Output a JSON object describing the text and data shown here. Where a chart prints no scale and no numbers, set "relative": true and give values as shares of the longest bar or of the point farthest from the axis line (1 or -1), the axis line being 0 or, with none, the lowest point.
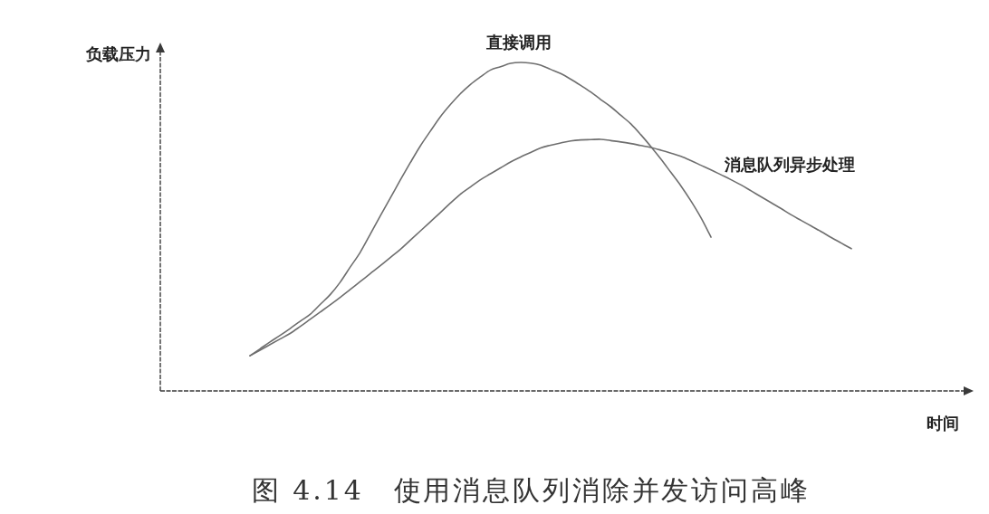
{
  "chart_data": {
    "type": "line",
    "relative": true,
    "line_style": "solid",
    "title": "图 4.14　使用消息队列消除并发访问高峰",
    "xlabel": "时间",
    "annotations": [
      "负载压力"
    ],
    "categories": [
      null,
      null,
      null,
      null,
      null,
      null,
      null,
      null,
      null,
      null,
      null,
      null,
      null,
      null,
      null,
      null,
      null,
      null,
      null,
      null,
      null,
      null,
      null,
      null,
      null,
      null,
      null,
      null,
      null,
      null,
      null,
      null,
      null,
      null,
      null,
      null,
      null,
      null,
      null,
      null,
      null,
      null,
      null,
      null,
      null,
      null,
      null,
      null,
      null,
      null,
      null,
      null,
      null,
      null,
      null,
      null,
      null,
      null,
      null,
      null,
      null
    ],
    "series": [
      {
        "name": "直接调用",
        "color": "#6e6e6e",
        "values": [
          0.107,
          0.128,
          0.149,
          0.169,
          0.19,
          0.212,
          0.233,
          0.263,
          0.293,
          0.331,
          0.377,
          0.422,
          0.477,
          0.533,
          0.587,
          0.642,
          0.695,
          0.746,
          0.791,
          0.835,
          0.872,
          0.905,
          0.933,
          0.956,
          0.977,
          0.987,
          0.997,
          1.0,
          0.998,
          0.992,
          0.979,
          0.966,
          0.949,
          0.93,
          0.91,
          0.887,
          0.865,
          0.839,
          0.813,
          0.78,
          0.744,
          0.706,
          0.665,
          0.624,
          0.578,
          0.527,
          0.468,
          null,
          null,
          null,
          null,
          null,
          null,
          null,
          null,
          null,
          null,
          null,
          null,
          null,
          null
        ]
      },
      {
        "name": "消息队列异步处理",
        "color": "#6e6e6e",
        "values": [
          0.107,
          0.124,
          0.141,
          0.158,
          0.175,
          0.196,
          0.218,
          0.24,
          0.262,
          0.285,
          0.309,
          0.333,
          0.357,
          0.381,
          0.406,
          0.431,
          0.459,
          0.487,
          0.515,
          0.543,
          0.572,
          0.599,
          0.621,
          0.643,
          0.661,
          0.679,
          0.697,
          0.712,
          0.726,
          0.74,
          0.748,
          0.755,
          0.761,
          0.764,
          0.765,
          0.766,
          0.762,
          0.758,
          0.753,
          0.747,
          0.741,
          0.733,
          0.724,
          0.714,
          0.701,
          0.687,
          0.673,
          0.658,
          0.643,
          0.627,
          0.609,
          0.591,
          0.573,
          0.555,
          0.536,
          0.519,
          0.502,
          0.485,
          0.467,
          0.45,
          0.433
        ]
      }
    ]
  }
}
